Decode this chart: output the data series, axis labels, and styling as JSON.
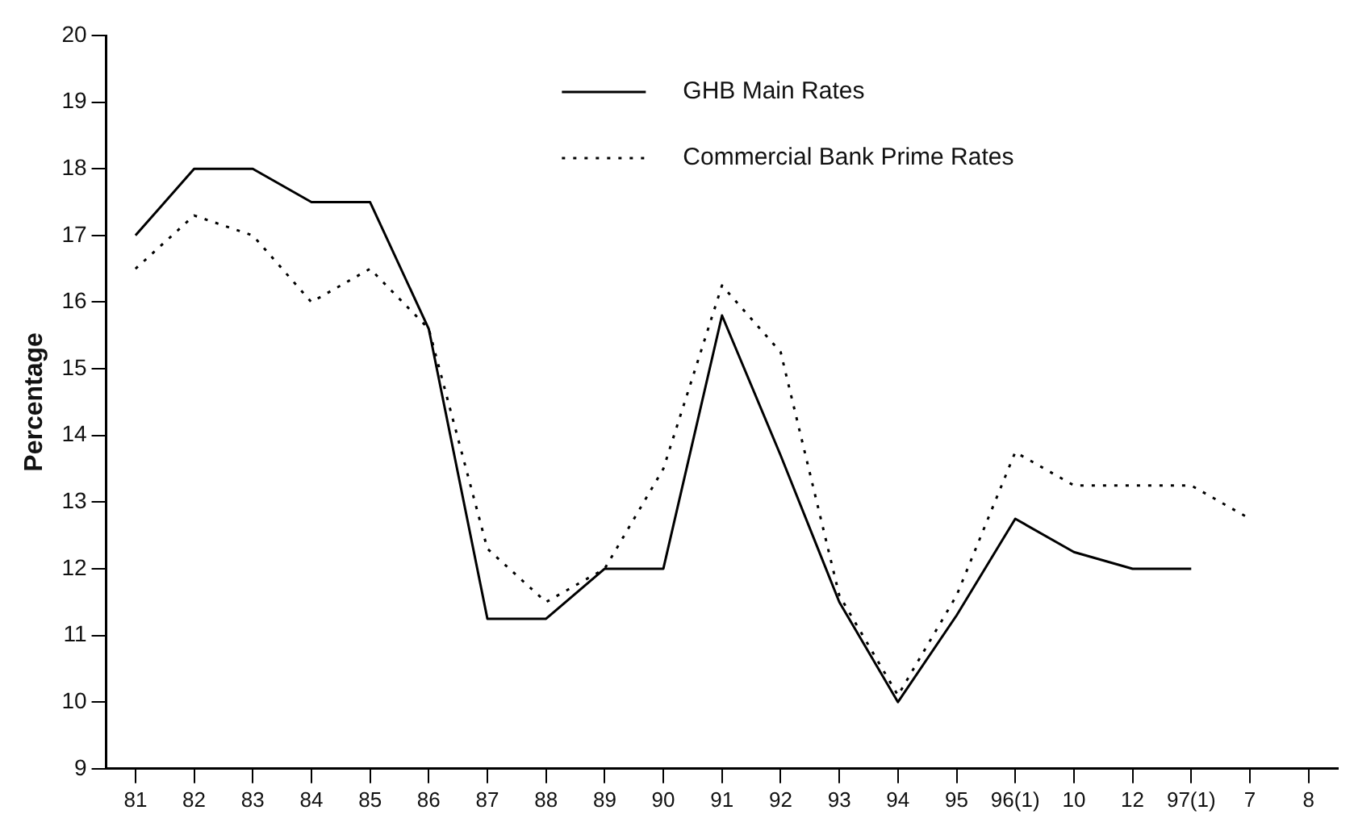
{
  "chart_data": {
    "type": "line",
    "ylabel": "Percentage",
    "categories": [
      "81",
      "82",
      "83",
      "84",
      "85",
      "86",
      "87",
      "88",
      "89",
      "90",
      "91",
      "92",
      "93",
      "94",
      "95",
      "96(1)",
      "10",
      "12",
      "97(1)",
      "7",
      "8"
    ],
    "series": [
      {
        "name": "GHB Main Rates",
        "color": "#000000",
        "line_style": "solid",
        "values": [
          17,
          18,
          18,
          17.5,
          17.5,
          15.6,
          11.25,
          11.25,
          12,
          12,
          15.8,
          13.7,
          11.5,
          10,
          11.3,
          12.75,
          12.25,
          12,
          12,
          null,
          null
        ]
      },
      {
        "name": "Commercial Bank Prime Rates",
        "color": "#000000",
        "line_style": "dotted",
        "values": [
          16.5,
          17.3,
          17,
          16,
          16.5,
          15.6,
          12.3,
          11.5,
          12,
          13.5,
          16.25,
          15.25,
          11.6,
          10.1,
          11.6,
          13.75,
          13.25,
          13.25,
          13.25,
          12.75,
          null
        ]
      }
    ],
    "ylim": [
      9,
      20
    ],
    "yticks": [
      9,
      10,
      11,
      12,
      13,
      14,
      15,
      16,
      17,
      18,
      19,
      20
    ],
    "grid": false,
    "legend": "top right",
    "marker": "none"
  }
}
